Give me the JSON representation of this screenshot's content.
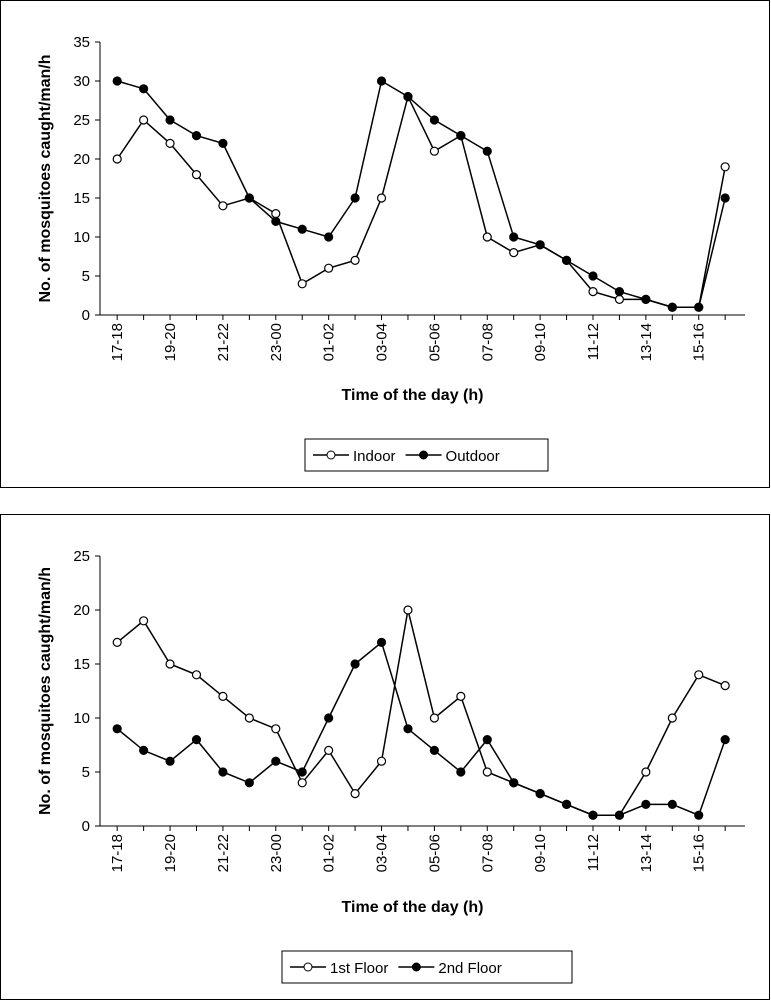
{
  "chart_data": [
    {
      "type": "line",
      "ylabel": "No. of mosquitoes caught/man/h",
      "xlabel": "Time of the day (h)",
      "categories": [
        "17-18",
        null,
        "19-20",
        null,
        "21-22",
        null,
        "23-00",
        null,
        "01-02",
        null,
        "03-04",
        null,
        "05-06",
        null,
        "07-08",
        null,
        "09-10",
        null,
        "11-12",
        null,
        "13-14",
        null,
        "15-16",
        null
      ],
      "series": [
        {
          "name": "Indoor",
          "color": "#000000",
          "marker_fill": "#ffffff",
          "values": [
            20,
            25,
            22,
            18,
            14,
            15,
            13,
            4,
            6,
            7,
            15,
            28,
            21,
            23,
            10,
            8,
            9,
            7,
            3,
            2,
            2,
            1,
            1,
            19
          ]
        },
        {
          "name": "Outdoor",
          "color": "#000000",
          "marker_fill": "#000000",
          "values": [
            30,
            29,
            25,
            23,
            22,
            15,
            12,
            11,
            10,
            15,
            30,
            28,
            25,
            23,
            21,
            10,
            9,
            7,
            5,
            3,
            2,
            1,
            1,
            15
          ]
        }
      ],
      "ylim": [
        0,
        35
      ],
      "yticks": [
        0,
        5,
        10,
        15,
        20,
        25,
        30,
        35
      ],
      "legend": "bottom"
    },
    {
      "type": "line",
      "ylabel": "No. of mosquitoes caught/man/h",
      "xlabel": "Time of the day (h)",
      "categories": [
        "17-18",
        null,
        "19-20",
        null,
        "21-22",
        null,
        "23-00",
        null,
        "01-02",
        null,
        "03-04",
        null,
        "05-06",
        null,
        "07-08",
        null,
        "09-10",
        null,
        "11-12",
        null,
        "13-14",
        null,
        "15-16",
        null
      ],
      "series": [
        {
          "name": "1st Floor",
          "color": "#000000",
          "marker_fill": "#ffffff",
          "values": [
            17,
            19,
            15,
            14,
            12,
            10,
            9,
            4,
            7,
            3,
            6,
            20,
            10,
            12,
            5,
            4,
            3,
            2,
            1,
            1,
            5,
            10,
            14,
            13
          ]
        },
        {
          "name": "2nd Floor",
          "color": "#000000",
          "marker_fill": "#000000",
          "values": [
            9,
            7,
            6,
            8,
            5,
            4,
            6,
            5,
            10,
            15,
            17,
            9,
            7,
            5,
            8,
            4,
            3,
            2,
            1,
            1,
            2,
            2,
            1,
            8
          ]
        }
      ],
      "ylim": [
        0,
        25
      ],
      "yticks": [
        0,
        5,
        10,
        15,
        20,
        25
      ],
      "legend": "bottom"
    }
  ]
}
